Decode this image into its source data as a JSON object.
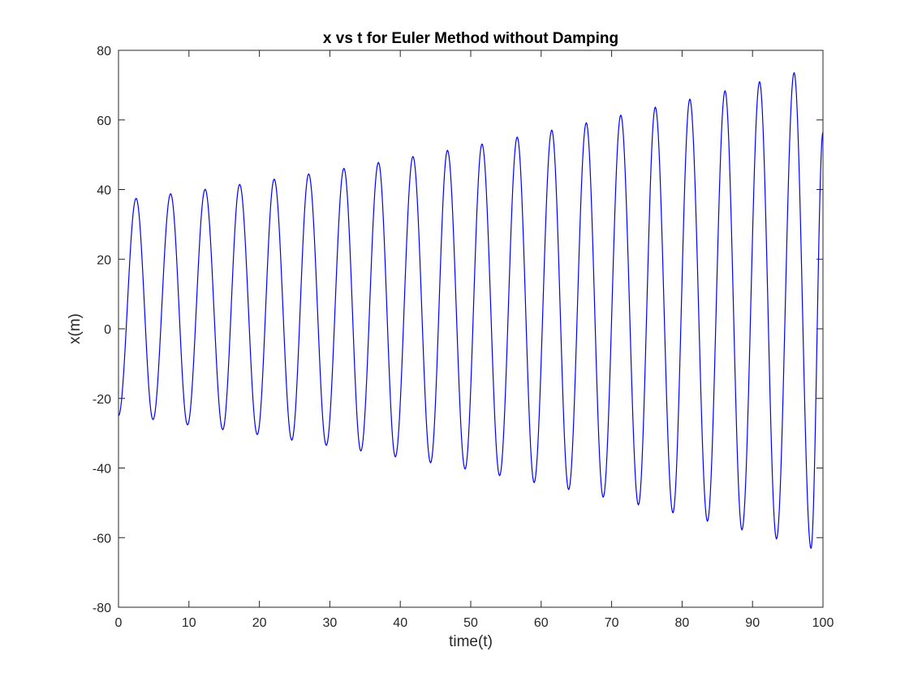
{
  "chart_data": {
    "type": "line",
    "title": "x vs t for Euler Method without Damping",
    "xlabel": "time(t)",
    "ylabel": "x(m)",
    "xlim": [
      0,
      100
    ],
    "ylim": [
      -80,
      80
    ],
    "xticks": [
      0,
      10,
      20,
      30,
      40,
      50,
      60,
      70,
      80,
      90,
      100
    ],
    "yticks": [
      -80,
      -60,
      -40,
      -20,
      0,
      20,
      40,
      60,
      80
    ],
    "grid": false,
    "legend": "none",
    "line_color": "#0000ff",
    "series": [
      {
        "x": [
          0,
          2.5,
          4.9,
          7.4,
          9.8,
          12.3,
          14.8,
          17.2,
          19.7,
          22.1,
          24.6,
          27.0,
          29.5,
          32.0,
          34.4,
          36.9,
          39.3,
          41.8,
          44.3,
          46.7,
          49.2,
          51.6,
          54.1,
          56.6,
          59.0,
          61.5,
          63.9,
          66.4,
          68.8,
          71.3,
          73.8,
          76.2,
          78.7,
          81.1,
          83.6,
          86.1,
          88.5,
          91.0,
          93.4,
          95.9,
          98.3,
          100
        ],
        "y": [
          -25,
          37.5,
          -26.1,
          38.8,
          -27.6,
          40.1,
          -29.0,
          41.5,
          -30.4,
          43.0,
          -32.0,
          44.5,
          -33.5,
          46.1,
          -35.1,
          47.8,
          -36.8,
          49.5,
          -38.5,
          51.3,
          -40.3,
          53.1,
          -42.2,
          55.1,
          -44.2,
          57.1,
          -46.2,
          59.2,
          -48.4,
          61.4,
          -50.6,
          63.7,
          -52.9,
          66.0,
          -55.3,
          68.4,
          -57.8,
          71.0,
          -60.4,
          73.6,
          -63.1,
          56.5
        ]
      }
    ]
  }
}
